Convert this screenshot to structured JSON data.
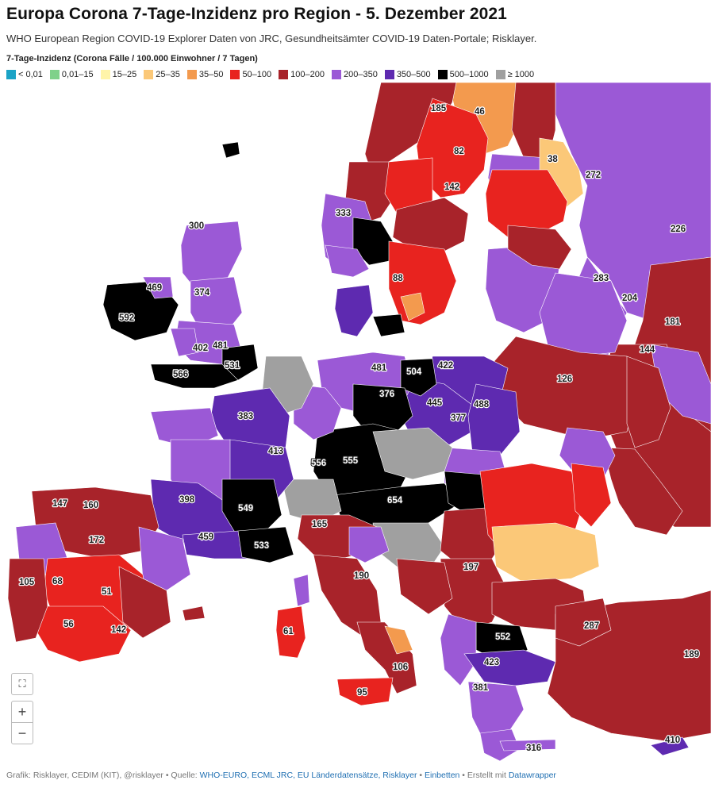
{
  "title": "Europa Corona 7-Tage-Inzidenz pro Region - 5. Dezember 2021",
  "subtitle": "WHO European Region COVID-19 Explorer Daten von JRC, Gesundheitsämter COVID-19  Daten-Portale; Risklayer.",
  "legend": {
    "title": "7-Tage-Inzidenz (Corona Fälle / 100.000 Einwohner / 7 Tagen)",
    "items": [
      {
        "label": "< 0,01",
        "color": "#1ba3c6"
      },
      {
        "label": "0,01–15",
        "color": "#7fd18a"
      },
      {
        "label": "15–25",
        "color": "#fff4a8"
      },
      {
        "label": "25–35",
        "color": "#fbc878"
      },
      {
        "label": "35–50",
        "color": "#f39a4e"
      },
      {
        "label": "50–100",
        "color": "#e8231f"
      },
      {
        "label": "100–200",
        "color": "#a8232a"
      },
      {
        "label": "200–350",
        "color": "#9b59d6"
      },
      {
        "label": "350–500",
        "color": "#5e2ab0"
      },
      {
        "label": "500–1000",
        "color": "#000000"
      },
      {
        "label": "≥ 1000",
        "color": "#a0a0a0"
      }
    ]
  },
  "map": {
    "sea_color": "#ffffff",
    "labels": {
      "ireland": "592",
      "ireland_b": "469",
      "uk_south": "566",
      "uk_london": "531",
      "uk_mid": "481",
      "uk_wales": "402",
      "uk_north": "374",
      "scotland": "300",
      "france_w": "383",
      "france_c": "413",
      "france_sw": "398",
      "france_s": "459",
      "france_e": "549",
      "france_se": "533",
      "spain_nw": "147",
      "spain_n": "160",
      "spain_c": "172",
      "spain_w": "68",
      "spain_c2": "51",
      "spain_s": "56",
      "spain_se": "142",
      "portugal": "105",
      "germany_n": "481",
      "germany_ne": "504",
      "germany_c": "376",
      "germany_s": "555",
      "germany_sw": "556",
      "austria": "654",
      "italy_n": "165",
      "italy_c": "190",
      "italy_s": "106",
      "sicily": "95",
      "sardinia": "61",
      "poland_n": "422",
      "poland_c": "445",
      "poland_e": "488",
      "poland_s": "377",
      "norway_n": "185",
      "norway_c": "333",
      "sweden_n": "82",
      "sweden_c": "142",
      "sweden_s": "88",
      "finland_n": "46",
      "finland_s": "38",
      "russia_n": "272",
      "russia_c": "226",
      "russia_w": "283",
      "belarus": "204",
      "ukraine": "126",
      "romania": "197",
      "bulgaria": "552",
      "greece": "423",
      "turkey": "189",
      "turkey_w": "287",
      "cyprus": "410",
      "crete": "316",
      "balkans": "381",
      "hungary": "197",
      "russia_e": "181",
      "russia_se": "144"
    }
  },
  "controls": {
    "fullscreen_icon": "⛶",
    "zoom_in": "+",
    "zoom_out": "−"
  },
  "footer": {
    "prefix": "Grafik: Risklayer, CEDIM (KIT), @risklayer • Quelle: ",
    "sources": "WHO-EURO, ECML JRC, EU Länderdatensätze, Risklayer",
    "sep1": " • ",
    "embed": "Einbetten",
    "sep2": " • Erstellt mit ",
    "tool": "Datawrapper"
  }
}
